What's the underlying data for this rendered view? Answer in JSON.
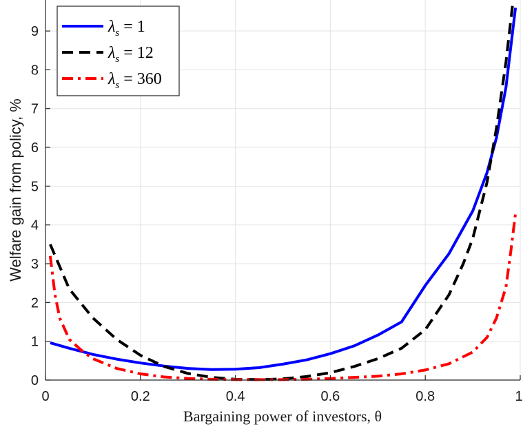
{
  "chart_data": {
    "type": "line",
    "xlabel": "Bargaining power of investors, θ",
    "ylabel": "Welfare gain from policy, %",
    "xlim": [
      0,
      1
    ],
    "ylim": [
      0,
      9.8
    ],
    "x_ticks": [
      "0",
      "0.2",
      "0.4",
      "0.6",
      "0.8",
      "1"
    ],
    "y_ticks": [
      "0",
      "1",
      "2",
      "3",
      "4",
      "5",
      "6",
      "7",
      "8",
      "9"
    ],
    "grid": true,
    "legend_position": "top-left",
    "series": [
      {
        "name": "λs = 1",
        "color": "#0000ff",
        "style": "solid",
        "x": [
          0.01,
          0.05,
          0.1,
          0.15,
          0.2,
          0.25,
          0.3,
          0.35,
          0.4,
          0.45,
          0.5,
          0.55,
          0.6,
          0.65,
          0.7,
          0.75,
          0.8,
          0.85,
          0.9,
          0.93,
          0.95,
          0.97,
          0.99
        ],
        "y": [
          0.96,
          0.82,
          0.66,
          0.54,
          0.44,
          0.36,
          0.3,
          0.27,
          0.28,
          0.32,
          0.41,
          0.52,
          0.68,
          0.88,
          1.16,
          1.5,
          2.44,
          3.26,
          4.36,
          5.35,
          6.25,
          7.55,
          9.6
        ]
      },
      {
        "name": "λs = 12",
        "color": "#000000",
        "style": "dashed",
        "x": [
          0.01,
          0.05,
          0.1,
          0.15,
          0.2,
          0.25,
          0.3,
          0.35,
          0.4,
          0.45,
          0.5,
          0.55,
          0.6,
          0.65,
          0.7,
          0.75,
          0.8,
          0.85,
          0.88,
          0.9,
          0.93,
          0.95,
          0.97,
          0.985
        ],
        "y": [
          3.5,
          2.35,
          1.6,
          1.05,
          0.64,
          0.35,
          0.17,
          0.07,
          0.02,
          0.01,
          0.03,
          0.09,
          0.19,
          0.35,
          0.55,
          0.82,
          1.3,
          2.2,
          3.0,
          3.65,
          5.1,
          6.5,
          8.2,
          9.8
        ]
      },
      {
        "name": "λs = 360",
        "color": "#ff0000",
        "style": "dashdot",
        "x": [
          0.01,
          0.02,
          0.03,
          0.05,
          0.08,
          0.1,
          0.15,
          0.2,
          0.25,
          0.3,
          0.35,
          0.4,
          0.45,
          0.5,
          0.55,
          0.6,
          0.65,
          0.7,
          0.75,
          0.8,
          0.85,
          0.9,
          0.93,
          0.95,
          0.97,
          0.98,
          0.99
        ],
        "y": [
          3.2,
          2.2,
          1.6,
          1.05,
          0.72,
          0.55,
          0.3,
          0.16,
          0.08,
          0.04,
          0.02,
          0.01,
          0.01,
          0.01,
          0.02,
          0.04,
          0.07,
          0.1,
          0.16,
          0.26,
          0.42,
          0.72,
          1.1,
          1.6,
          2.4,
          3.3,
          4.3
        ]
      }
    ]
  },
  "legend": {
    "items": [
      {
        "label_main": "λ",
        "label_sub": "s",
        "label_rest": " = 1",
        "color": "#0000ff",
        "style": "solid"
      },
      {
        "label_main": "λ",
        "label_sub": "s",
        "label_rest": " = 12",
        "color": "#000000",
        "style": "dashed"
      },
      {
        "label_main": "λ",
        "label_sub": "s",
        "label_rest": " = 360",
        "color": "#ff0000",
        "style": "dashdot"
      }
    ]
  }
}
